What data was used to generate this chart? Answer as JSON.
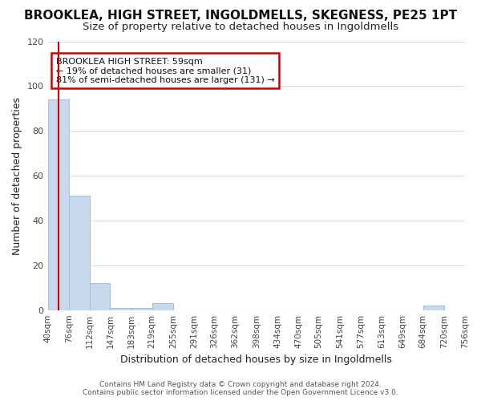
{
  "title": "BROOKLEA, HIGH STREET, INGOLDMELLS, SKEGNESS, PE25 1PT",
  "subtitle": "Size of property relative to detached houses in Ingoldmells",
  "xlabel": "Distribution of detached houses by size in Ingoldmells",
  "ylabel": "Number of detached properties",
  "bar_color": "#c8d9ee",
  "bar_edge_color": "#a0bdd8",
  "background_color": "#ffffff",
  "grid_color": "#d0dff0",
  "bin_edges": [
    40,
    76,
    112,
    147,
    183,
    219,
    255,
    291,
    326,
    362,
    398,
    434,
    470,
    505,
    541,
    577,
    613,
    649,
    684,
    720,
    756
  ],
  "bar_heights": [
    94,
    51,
    12,
    1,
    1,
    3,
    0,
    0,
    0,
    0,
    0,
    0,
    0,
    0,
    0,
    0,
    0,
    0,
    2,
    0
  ],
  "property_size": 59,
  "annotation_title": "BROOKLEA HIGH STREET: 59sqm",
  "annotation_line1": "← 19% of detached houses are smaller (31)",
  "annotation_line2": "81% of semi-detached houses are larger (131) →",
  "annotation_box_color": "#cc0000",
  "ylim": [
    0,
    120
  ],
  "tick_labels": [
    "40sqm",
    "76sqm",
    "112sqm",
    "147sqm",
    "183sqm",
    "219sqm",
    "255sqm",
    "291sqm",
    "326sqm",
    "362sqm",
    "398sqm",
    "434sqm",
    "470sqm",
    "505sqm",
    "541sqm",
    "577sqm",
    "613sqm",
    "649sqm",
    "684sqm",
    "720sqm",
    "756sqm"
  ],
  "footer_line1": "Contains HM Land Registry data © Crown copyright and database right 2024.",
  "footer_line2": "Contains public sector information licensed under the Open Government Licence v3.0.",
  "title_fontsize": 11,
  "subtitle_fontsize": 9.5,
  "axis_label_fontsize": 9,
  "tick_fontsize": 7.5,
  "annotation_fontsize": 8,
  "footer_fontsize": 6.5,
  "ytick_labels": [
    "0",
    "20",
    "40",
    "60",
    "80",
    "100",
    "120"
  ],
  "ytick_vals": [
    0,
    20,
    40,
    60,
    80,
    100,
    120
  ]
}
